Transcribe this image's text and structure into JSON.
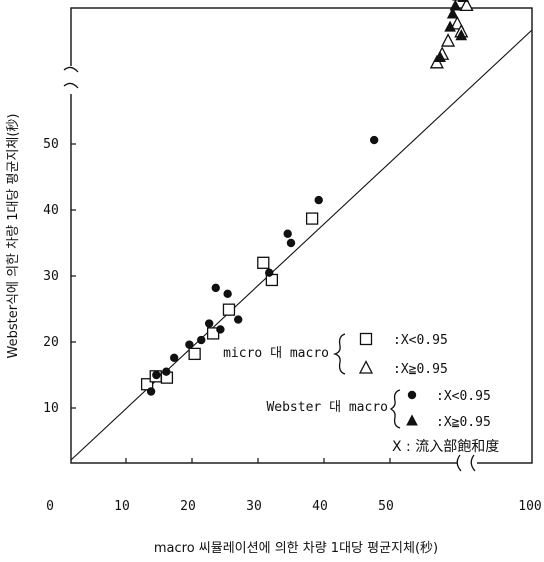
{
  "chart_data": {
    "type": "scatter",
    "xlabel": "macro 씨뮬레이션에 의한 차량 1대당 평균지체(秒)",
    "ylabel": "Webster식에 의한 차량 1대당 평균지체(秒)",
    "x_ticks": [
      "0",
      "10",
      "20",
      "30",
      "40",
      "50",
      "100"
    ],
    "y_ticks": [
      "10",
      "20",
      "30",
      "40",
      "50"
    ],
    "xlim": [
      0,
      60
    ],
    "ylim": [
      0,
      60
    ],
    "axis_break": "between 50 and 100 on both axes",
    "reference_line": "y = x",
    "legend": {
      "groups": [
        {
          "name": "micro 대 macro",
          "entries": [
            {
              "marker": "open-square",
              "label": ":X<0.95"
            },
            {
              "marker": "open-triangle",
              "label": ":X≧0.95"
            }
          ]
        },
        {
          "name": "Webster 대 macro",
          "entries": [
            {
              "marker": "filled-circle",
              "label": ":X<0.95"
            },
            {
              "marker": "filled-triangle",
              "label": ":X≧0.95"
            }
          ]
        }
      ],
      "note": "X : 流入部飽和度"
    },
    "series": [
      {
        "name": "micro 대 macro, X<0.95",
        "marker": "open-square",
        "x": [
          13.2,
          14.5,
          16.2,
          20.4,
          23.2,
          25.6,
          30.8,
          32.1,
          38.2
        ],
        "y": [
          13.6,
          14.8,
          14.6,
          18.2,
          21.3,
          24.9,
          32.0,
          29.4,
          38.7
        ]
      },
      {
        "name": "micro 대 macro, X≧0.95",
        "marker": "open-triangle",
        "x": [
          57.1,
          57.9,
          58.8,
          60.2,
          60.8,
          61.6
        ],
        "y": [
          62.3,
          63.6,
          65.6,
          68.2,
          67.0,
          71.0
        ]
      },
      {
        "name": "Webster 대 macro, X<0.95",
        "marker": "filled-circle",
        "x": [
          13.8,
          14.6,
          16.1,
          17.3,
          19.6,
          21.4,
          22.6,
          23.6,
          24.3,
          25.4,
          27.0,
          31.7,
          34.5,
          35.0,
          39.2,
          47.6
        ],
        "y": [
          12.5,
          15.0,
          15.5,
          17.6,
          19.6,
          20.3,
          22.8,
          28.2,
          21.9,
          27.3,
          23.4,
          30.5,
          36.4,
          35.0,
          41.5,
          50.6
        ]
      },
      {
        "name": "Webster 대 macro, X≧0.95",
        "marker": "filled-triangle",
        "x": [
          57.6,
          59.1,
          59.5,
          59.9,
          60.3,
          60.8,
          61.1
        ],
        "y": [
          63.1,
          67.7,
          69.7,
          70.9,
          72.4,
          66.4,
          72.2
        ]
      }
    ]
  }
}
